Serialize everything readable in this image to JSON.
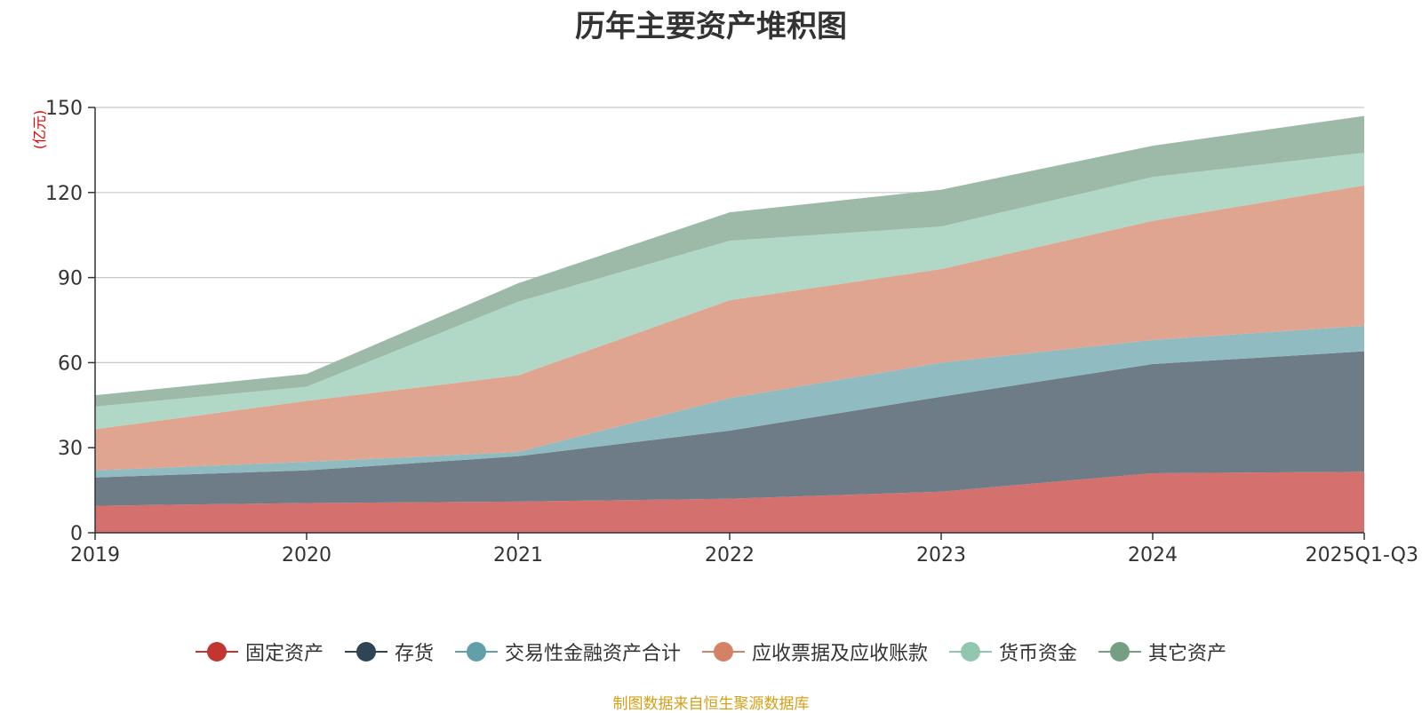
{
  "chart_data": {
    "type": "area",
    "stacked": true,
    "title": "历年主要资产堆积图",
    "unit": "(亿元)",
    "categories": [
      "2019",
      "2020",
      "2021",
      "2022",
      "2023",
      "2024",
      "2025Q1-Q3"
    ],
    "ylim": [
      0,
      150
    ],
    "yticks": [
      0,
      30,
      60,
      90,
      120,
      150
    ],
    "grid": true,
    "legend_position": "bottom",
    "series": [
      {
        "name": "固定资产",
        "color": "#c23531",
        "fill": "#d4706d",
        "values": [
          9.5,
          10.5,
          11,
          12,
          14.5,
          21,
          21.5
        ]
      },
      {
        "name": "存货",
        "color": "#2f4554",
        "fill": "#6e7c87",
        "values": [
          10,
          11.5,
          16,
          24,
          33.5,
          38.5,
          42.5
        ]
      },
      {
        "name": "交易性金融资产合计",
        "color": "#61a0a8",
        "fill": "#90bbc0",
        "values": [
          2.5,
          3,
          1.5,
          11.5,
          12,
          8.5,
          9
        ]
      },
      {
        "name": "应收票据及应收账款",
        "color": "#d48265",
        "fill": "#e0a590",
        "values": [
          14.5,
          21.5,
          27,
          34.5,
          33,
          42,
          49.5
        ]
      },
      {
        "name": "货币资金",
        "color": "#91c7ae",
        "fill": "#b1d8c6",
        "values": [
          8,
          5,
          26,
          21,
          15,
          15.5,
          11.5
        ]
      },
      {
        "name": "其它资产",
        "color": "#749f83",
        "fill": "#9db9a7",
        "values": [
          4,
          4.5,
          6.5,
          10,
          13,
          11,
          13
        ]
      }
    ]
  },
  "source_text": "制图数据来自恒生聚源数据库",
  "colors": {
    "source": "#d4a017",
    "unit": "#e60000",
    "grid": "#c8c8c8",
    "axis": "#333333"
  }
}
